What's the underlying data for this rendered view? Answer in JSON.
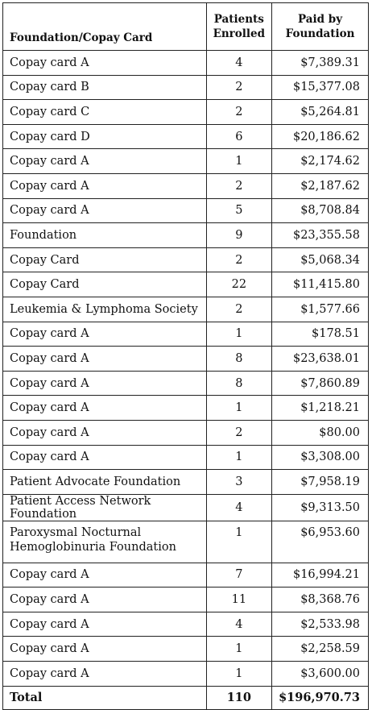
{
  "headers": {
    "name": "Foundation/Copay Card",
    "enrolled": [
      "Patients",
      "Enrolled"
    ],
    "paid": [
      "Paid by",
      "Foundation"
    ]
  },
  "rows": [
    {
      "name": "Copay card A",
      "enrolled": "4",
      "paid": "$7,389.31"
    },
    {
      "name": "Copay card B",
      "enrolled": "2",
      "paid": "$15,377.08"
    },
    {
      "name": "Copay card C",
      "enrolled": "2",
      "paid": "$5,264.81"
    },
    {
      "name": "Copay card D",
      "enrolled": "6",
      "paid": "$20,186.62"
    },
    {
      "name": "Copay card A",
      "enrolled": "1",
      "paid": "$2,174.62"
    },
    {
      "name": "Copay card A",
      "enrolled": "2",
      "paid": "$2,187.62"
    },
    {
      "name": "Copay card A",
      "enrolled": "5",
      "paid": "$8,708.84"
    },
    {
      "name": "Foundation",
      "enrolled": "9",
      "paid": "$23,355.58"
    },
    {
      "name": "Copay Card",
      "enrolled": "2",
      "paid": "$5,068.34"
    },
    {
      "name": "Copay Card",
      "enrolled": "22",
      "paid": "$11,415.80"
    },
    {
      "name": "Leukemia & Lymphoma Society",
      "enrolled": "2",
      "paid": "$1,577.66"
    },
    {
      "name": "Copay card A",
      "enrolled": "1",
      "paid": "$178.51"
    },
    {
      "name": "Copay card A",
      "enrolled": "8",
      "paid": "$23,638.01"
    },
    {
      "name": "Copay card A",
      "enrolled": "8",
      "paid": "$7,860.89"
    },
    {
      "name": "Copay card A",
      "enrolled": "1",
      "paid": "$1,218.21"
    },
    {
      "name": "Copay card A",
      "enrolled": "2",
      "paid": "$80.00"
    },
    {
      "name": "Copay card A",
      "enrolled": "1",
      "paid": "$3,308.00"
    },
    {
      "name": "Patient Advocate Foundation",
      "enrolled": "3",
      "paid": "$7,958.19"
    },
    {
      "name": "Patient Access Network Foundation",
      "enrolled": "4",
      "paid": "$9,313.50"
    },
    {
      "name": "Paroxysmal Nocturnal Hemoglobinuria Foundation",
      "enrolled": "1",
      "paid": "$6,953.60"
    },
    {
      "name": "Copay card A",
      "enrolled": "7",
      "paid": "$16,994.21"
    },
    {
      "name": "Copay card A",
      "enrolled": "11",
      "paid": "$8,368.76"
    },
    {
      "name": "Copay card A",
      "enrolled": "4",
      "paid": "$2,533.98"
    },
    {
      "name": "Copay card A",
      "enrolled": "1",
      "paid": "$2,258.59"
    },
    {
      "name": "Copay card A",
      "enrolled": "1",
      "paid": "$3,600.00"
    }
  ],
  "total": {
    "name": "Total",
    "enrolled": "110",
    "paid": "$196,970.73"
  }
}
